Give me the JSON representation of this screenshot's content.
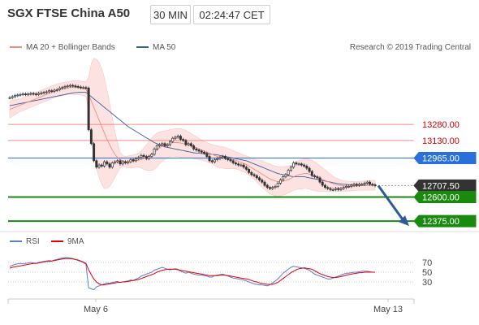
{
  "header": {
    "title": "SGX FTSE China A50",
    "timeframe": "30 MIN",
    "time": "02:24:47 CET"
  },
  "legend": {
    "bands_label": "MA 20 + Bollinger Bands",
    "ma50_label": "MA 50",
    "credit": "Research © 2019 Trading Central",
    "rsi_label": "RSI",
    "ma9_label": "9MA"
  },
  "colors": {
    "ma20": "#f28b82",
    "ma50": "#3a5f98",
    "band_fill": "#fde2e2",
    "resistance": "#f28b82",
    "pivot": "#2a6fdb",
    "support": "#1a8a0f",
    "current": "#333333",
    "candle_up": "#333333",
    "candle_down": "#333333",
    "rsi": "#5b7bd5",
    "ma9": "#e60000",
    "arrow": "#2f5a9a"
  },
  "chart_data": {
    "type": "candlestick",
    "xlabels": [
      "May 6",
      "May 13"
    ],
    "ylim": [
      12300,
      13950
    ],
    "levels": [
      {
        "value": 13280,
        "label": "13280.00",
        "kind": "resistance"
      },
      {
        "value": 13130,
        "label": "13130.00",
        "kind": "resistance"
      },
      {
        "value": 12965,
        "label": "12965.00",
        "kind": "pivot"
      },
      {
        "value": 12707.5,
        "label": "12707.50",
        "kind": "current"
      },
      {
        "value": 12600,
        "label": "12600.00",
        "kind": "support"
      },
      {
        "value": 12375,
        "label": "12375.00",
        "kind": "support"
      }
    ],
    "close": [
      13530,
      13540,
      13550,
      13555,
      13560,
      13565,
      13560,
      13565,
      13570,
      13565,
      13560,
      13570,
      13575,
      13580,
      13585,
      13595,
      13590,
      13600,
      13605,
      13620,
      13625,
      13635,
      13640,
      13645,
      13640,
      13635,
      13630,
      13625,
      13625,
      13620,
      13230,
      13100,
      12940,
      12880,
      12900,
      12890,
      12930,
      12910,
      12880,
      12920,
      12930,
      12940,
      12910,
      12930,
      12920,
      12930,
      12950,
      12940,
      12960,
      12970,
      12990,
      12980,
      12960,
      12980,
      13000,
      13050,
      13080,
      13090,
      13100,
      13080,
      13090,
      13120,
      13150,
      13160,
      13170,
      13140,
      13130,
      13090,
      13100,
      13080,
      13050,
      13040,
      13030,
      13020,
      13010,
      12980,
      12940,
      12930,
      12950,
      12960,
      12970,
      12980,
      12960,
      12950,
      12940,
      12920,
      12910,
      12900,
      12900,
      12880,
      12860,
      12830,
      12810,
      12800,
      12780,
      12760,
      12740,
      12710,
      12690,
      12680,
      12690,
      12700,
      12730,
      12760,
      12790,
      12810,
      12850,
      12880,
      12920,
      12910,
      12910,
      12900,
      12890,
      12870,
      12840,
      12800,
      12790,
      12780,
      12740,
      12710,
      12690,
      12680,
      12670,
      12670,
      12680,
      12670,
      12680,
      12690,
      12700,
      12700,
      12710,
      12720,
      12710,
      12720,
      12720,
      12730,
      12740,
      12720,
      12715,
      12707
    ],
    "ma20": [
      13420,
      13430,
      13440,
      13450,
      13460,
      13470,
      13480,
      13490,
      13500,
      13510,
      13520,
      13530,
      13540,
      13550,
      13560,
      13570,
      13580,
      13590,
      13600,
      13605,
      13610,
      13615,
      13620,
      13625,
      13625,
      13625,
      13625,
      13620,
      13615,
      13610,
      13560,
      13500,
      13440,
      13380,
      13320,
      13260,
      13200,
      13140,
      13090,
      13040,
      13000,
      12970,
      12950,
      12940,
      12930,
      12930,
      12930,
      12935,
      12940,
      12945,
      12950,
      12960,
      12970,
      12985,
      13000,
      13020,
      13040,
      13060,
      13075,
      13085,
      13095,
      13105,
      13110,
      13110,
      13110,
      13105,
      13100,
      13095,
      13090,
      13080,
      13070,
      13060,
      13050,
      13040,
      13030,
      13020,
      13010,
      13000,
      12990,
      12980,
      12975,
      12970,
      12965,
      12960,
      12955,
      12950,
      12945,
      12935,
      12925,
      12915,
      12905,
      12890,
      12875,
      12860,
      12845,
      12830,
      12815,
      12800,
      12785,
      12770,
      12760,
      12750,
      12745,
      12745,
      12750,
      12755,
      12765,
      12775,
      12790,
      12800,
      12810,
      12815,
      12820,
      12820,
      12815,
      12805,
      12795,
      12785,
      12775,
      12765,
      12755,
      12745,
      12735,
      12725,
      12718,
      12712,
      12708,
      12705,
      12703,
      12702,
      12702,
      12703,
      12704,
      12705,
      12706,
      12707,
      12708,
      12709,
      12710,
      12711
    ],
    "upper": [
      13500,
      13505,
      13510,
      13515,
      13520,
      13530,
      13540,
      13550,
      13560,
      13570,
      13580,
      13590,
      13600,
      13610,
      13620,
      13630,
      13640,
      13650,
      13660,
      13665,
      13670,
      13675,
      13680,
      13685,
      13690,
      13690,
      13690,
      13685,
      13680,
      13680,
      13720,
      13850,
      13900,
      13890,
      13860,
      13800,
      13720,
      13600,
      13480,
      13340,
      13220,
      13110,
      13020,
      12990,
      12980,
      12985,
      12990,
      12995,
      13000,
      13010,
      13030,
      13060,
      13090,
      13120,
      13150,
      13180,
      13200,
      13210,
      13215,
      13220,
      13225,
      13230,
      13235,
      13240,
      13240,
      13240,
      13235,
      13225,
      13210,
      13195,
      13180,
      13165,
      13150,
      13135,
      13120,
      13110,
      13100,
      13090,
      13085,
      13080,
      13075,
      13070,
      13065,
      13055,
      13045,
      13035,
      13025,
      13015,
      13005,
      12995,
      12985,
      12975,
      12965,
      12955,
      12950,
      12945,
      12940,
      12930,
      12920,
      12910,
      12900,
      12890,
      12885,
      12880,
      12880,
      12885,
      12890,
      12900,
      12915,
      12930,
      12945,
      12955,
      12960,
      12960,
      12955,
      12945,
      12930,
      12915,
      12895,
      12875,
      12855,
      12835,
      12815,
      12795,
      12780,
      12770,
      12760,
      12755,
      12750,
      12748,
      12746,
      12745,
      12745,
      12746,
      12748,
      12750,
      12752,
      12754,
      12756,
      12758
    ],
    "lower": [
      13340,
      13355,
      13370,
      13385,
      13400,
      13410,
      13420,
      13430,
      13440,
      13450,
      13460,
      13470,
      13480,
      13490,
      13500,
      13510,
      13520,
      13530,
      13540,
      13545,
      13550,
      13555,
      13560,
      13565,
      13560,
      13560,
      13560,
      13555,
      13550,
      13540,
      13400,
      13150,
      12980,
      12870,
      12780,
      12720,
      12680,
      12680,
      12700,
      12740,
      12780,
      12830,
      12870,
      12890,
      12880,
      12875,
      12870,
      12875,
      12880,
      12880,
      12870,
      12860,
      12850,
      12850,
      12850,
      12860,
      12880,
      12910,
      12935,
      12950,
      12965,
      12980,
      12985,
      12980,
      12980,
      12970,
      12965,
      12965,
      12970,
      12965,
      12960,
      12955,
      12950,
      12945,
      12940,
      12930,
      12920,
      12910,
      12895,
      12880,
      12875,
      12870,
      12865,
      12865,
      12865,
      12865,
      12865,
      12855,
      12845,
      12835,
      12825,
      12805,
      12785,
      12765,
      12740,
      12715,
      12690,
      12670,
      12650,
      12630,
      12620,
      12610,
      12605,
      12610,
      12620,
      12625,
      12640,
      12650,
      12665,
      12670,
      12675,
      12675,
      12680,
      12680,
      12675,
      12665,
      12660,
      12655,
      12655,
      12655,
      12655,
      12655,
      12655,
      12655,
      12656,
      12654,
      12656,
      12655,
      12656,
      12656,
      12658,
      12661,
      12663,
      12664,
      12664,
      12664,
      12664,
      12664,
      12664,
      12664
    ],
    "ma50": [
      13455,
      13460,
      13465,
      13470,
      13475,
      13480,
      13485,
      13490,
      13495,
      13500,
      13505,
      13510,
      13515,
      13520,
      13525,
      13530,
      13535,
      13540,
      13545,
      13550,
      13555,
      13560,
      13565,
      13570,
      13575,
      13578,
      13580,
      13582,
      13582,
      13580,
      13560,
      13540,
      13520,
      13500,
      13480,
      13460,
      13440,
      13420,
      13400,
      13380,
      13360,
      13340,
      13320,
      13300,
      13280,
      13260,
      13245,
      13230,
      13215,
      13200,
      13185,
      13170,
      13155,
      13140,
      13125,
      13110,
      13100,
      13090,
      13080,
      13070,
      13065,
      13060,
      13055,
      13050,
      13045,
      13040,
      13035,
      13030,
      13025,
      13020,
      13015,
      13012,
      13010,
      13008,
      13006,
      13004,
      13002,
      13000,
      12998,
      12995,
      12990,
      12985,
      12980,
      12975,
      12970,
      12965,
      12960,
      12955,
      12950,
      12945,
      12940,
      12930,
      12920,
      12910,
      12900,
      12890,
      12880,
      12870,
      12860,
      12850,
      12840,
      12830,
      12820,
      12815,
      12810,
      12805,
      12800,
      12795,
      12790,
      12790,
      12790,
      12790,
      12790,
      12785,
      12780,
      12775,
      12770,
      12765,
      12760,
      12755,
      12750,
      12745,
      12740,
      12735,
      12730,
      12725,
      12722,
      12720,
      12718,
      12716,
      12714,
      12712,
      12711,
      12710,
      12710,
      12710,
      12710,
      12710,
      12710,
      12710
    ],
    "rsi_ticks": [
      70,
      50,
      30
    ],
    "rsi_ylim": [
      0,
      100
    ],
    "rsi": [
      62,
      64,
      66,
      67,
      68,
      67,
      68,
      69,
      70,
      69,
      68,
      70,
      71,
      72,
      73,
      74,
      73,
      75,
      76,
      78,
      79,
      80,
      80,
      79,
      78,
      76,
      74,
      72,
      70,
      66,
      18,
      16,
      14,
      20,
      22,
      24,
      26,
      28,
      27,
      29,
      30,
      31,
      29,
      30,
      31,
      32,
      34,
      33,
      36,
      38,
      42,
      44,
      46,
      48,
      50,
      54,
      56,
      58,
      60,
      58,
      56,
      55,
      56,
      57,
      56,
      52,
      50,
      48,
      50,
      48,
      46,
      45,
      44,
      44,
      43,
      42,
      40,
      40,
      43,
      44,
      45,
      46,
      44,
      42,
      40,
      38,
      37,
      36,
      35,
      34,
      32,
      30,
      28,
      26,
      25,
      24,
      24,
      23,
      22,
      24,
      28,
      32,
      36,
      42,
      48,
      52,
      56,
      60,
      62,
      61,
      60,
      59,
      58,
      56,
      54,
      50,
      46,
      44,
      42,
      40,
      38,
      36,
      36,
      38,
      40,
      42,
      44,
      46,
      48,
      48,
      49,
      50,
      50,
      51,
      52,
      52,
      52,
      51,
      50,
      50
    ],
    "ma9": [
      58,
      60,
      61,
      62,
      63,
      64,
      65,
      66,
      67,
      68,
      68,
      69,
      70,
      71,
      72,
      72,
      73,
      74,
      75,
      76,
      77,
      78,
      78,
      78,
      77,
      76,
      75,
      73,
      71,
      68,
      55,
      45,
      36,
      30,
      26,
      24,
      24,
      25,
      26,
      27,
      28,
      29,
      29,
      30,
      30,
      31,
      32,
      33,
      34,
      35,
      37,
      39,
      41,
      43,
      45,
      47,
      50,
      52,
      54,
      55,
      56,
      56,
      56,
      56,
      55,
      54,
      53,
      52,
      51,
      50,
      49,
      48,
      47,
      46,
      45,
      44,
      43,
      43,
      43,
      43,
      44,
      44,
      44,
      43,
      42,
      41,
      40,
      39,
      38,
      37,
      36,
      35,
      33,
      31,
      30,
      28,
      27,
      26,
      25,
      25,
      25,
      27,
      29,
      33,
      37,
      41,
      45,
      49,
      52,
      55,
      57,
      58,
      59,
      58,
      57,
      56,
      53,
      50,
      47,
      45,
      43,
      41,
      40,
      39,
      39,
      40,
      41,
      42,
      44,
      45,
      46,
      47,
      48,
      49,
      49,
      50,
      50,
      50,
      50,
      50
    ]
  }
}
